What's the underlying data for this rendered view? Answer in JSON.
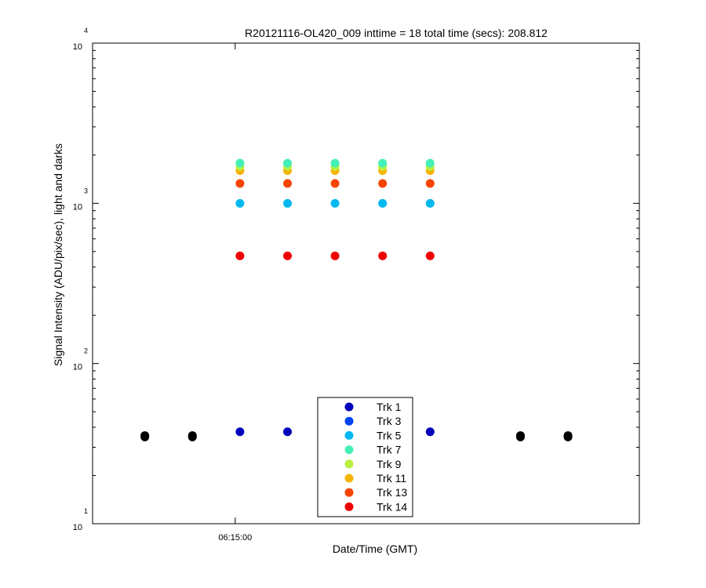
{
  "chart_data": {
    "type": "scatter",
    "title": "R20121116-OL420_009 inttime = 18 total time (secs): 208.812",
    "xlabel": "Date/Time (GMT)",
    "ylabel": "Signal Intensity (ADU/pix/sec), light and darks",
    "y_scale": "log",
    "ylim": [
      10,
      10000
    ],
    "xlim": [
      "06:14:30",
      "06:16:25"
    ],
    "x_ticks": [
      {
        "value": "06:15:00",
        "label": "06:15:00"
      }
    ],
    "y_ticks": [
      {
        "base": "10",
        "exp": "1"
      },
      {
        "base": "10",
        "exp": "2"
      },
      {
        "base": "10",
        "exp": "3"
      },
      {
        "base": "10",
        "exp": "4"
      }
    ],
    "legend_position": "bottom-center",
    "dark_series": {
      "color": "#000000",
      "points": [
        {
          "x": "06:14:41",
          "y": 35.5
        },
        {
          "x": "06:14:41",
          "y": 34.8
        },
        {
          "x": "06:14:51",
          "y": 35.5
        },
        {
          "x": "06:14:51",
          "y": 34.8
        },
        {
          "x": "06:16:00",
          "y": 35.5
        },
        {
          "x": "06:16:00",
          "y": 34.8
        },
        {
          "x": "06:16:10",
          "y": 35.5
        },
        {
          "x": "06:16:10",
          "y": 34.8
        }
      ]
    },
    "light_x": [
      "06:15:01",
      "06:15:11",
      "06:15:21",
      "06:15:31",
      "06:15:41"
    ],
    "series": [
      {
        "name": "Trk 1",
        "color": "#0000bb",
        "values": [
          37.5,
          37.5,
          null,
          null,
          37.5
        ]
      },
      {
        "name": "Trk 3",
        "color": "#0044ee",
        "values": [
          null,
          null,
          null,
          null,
          null
        ]
      },
      {
        "name": "Trk 5",
        "color": "#00b8f0",
        "values": [
          1000,
          1000,
          1000,
          1000,
          1000
        ]
      },
      {
        "name": "Trk 7",
        "color": "#44f0b8",
        "values": [
          1780,
          1780,
          1780,
          1780,
          1780
        ]
      },
      {
        "name": "Trk 9",
        "color": "#b8f040",
        "values": [
          1700,
          1700,
          1700,
          1700,
          1700
        ]
      },
      {
        "name": "Trk 11",
        "color": "#f5b400",
        "values": [
          1600,
          1600,
          1600,
          1600,
          1600
        ]
      },
      {
        "name": "Trk 13",
        "color": "#f54400",
        "values": [
          1330,
          1330,
          1330,
          1330,
          1330
        ]
      },
      {
        "name": "Trk 14",
        "color": "#ee0000",
        "values": [
          470,
          470,
          470,
          470,
          470
        ]
      }
    ]
  }
}
